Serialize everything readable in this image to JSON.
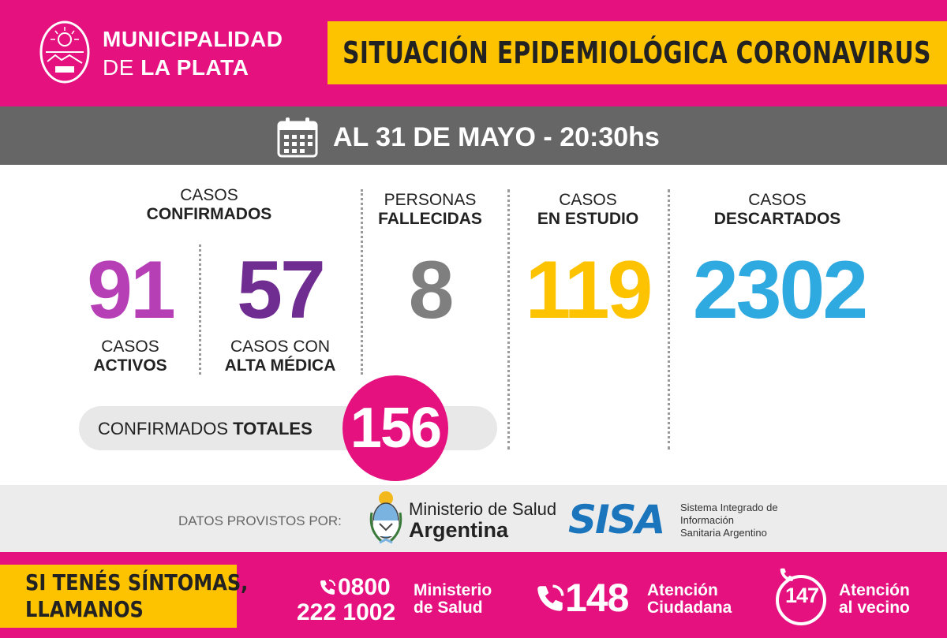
{
  "header": {
    "org_line1": "MUNICIPALIDAD",
    "org_line2_a": "DE",
    "org_line2_b": "LA PLATA",
    "title": "SITUACIÓN EPIDEMIOLÓGICA CORONAVIRUS",
    "colors": {
      "brand": "#e4117f",
      "accent": "#fdc300"
    }
  },
  "date_bar": {
    "text": "AL 31 DE MAYO - 20:30hs",
    "icon": "calendar-icon"
  },
  "stats": {
    "confirmed": {
      "label_line1": "CASOS",
      "label_line2": "CONFIRMADOS",
      "active": {
        "value": "91",
        "label_line1": "CASOS",
        "label_line2": "ACTIVOS",
        "color": "#b63fb6"
      },
      "discharged": {
        "value": "57",
        "label_line1": "CASOS CON",
        "label_line2": "ALTA MÉDICA",
        "color": "#6f2c91"
      }
    },
    "deceased": {
      "label_line1": "PERSONAS",
      "label_line2": "FALLECIDAS",
      "value": "8",
      "color": "#7f7f7f"
    },
    "under_study": {
      "label_line1": "CASOS",
      "label_line2": "EN ESTUDIO",
      "value": "119",
      "color": "#fdc300"
    },
    "discarded": {
      "label_line1": "CASOS",
      "label_line2": "DESCARTADOS",
      "value": "2302",
      "color": "#2eaae1"
    },
    "totals": {
      "label_a": "CONFIRMADOS",
      "label_b": "TOTALES",
      "value": "156"
    }
  },
  "provided_by": {
    "label": "DATOS PROVISTOS POR:",
    "ministry_line1": "Ministerio de Salud",
    "ministry_line2": "Argentina",
    "sisa_logo": "SISA",
    "sisa_line1": "Sistema Integrado de",
    "sisa_line2": "Información",
    "sisa_line3": "Sanitaria Argentino"
  },
  "footer": {
    "symptoms_line1": "SI TENÉS SÍNTOMAS,",
    "symptoms_line2": "LLAMANOS",
    "phone1_line1": "0800",
    "phone1_line2": "222 1002",
    "phone1_label_line1": "Ministerio",
    "phone1_label_line2": "de Salud",
    "phone2": "148",
    "phone2_label_line1": "Atención",
    "phone2_label_line2": "Ciudadana",
    "phone3": "147",
    "phone3_label_line1": "Atención",
    "phone3_label_line2": "al vecino",
    "icon": "phone-icon"
  }
}
